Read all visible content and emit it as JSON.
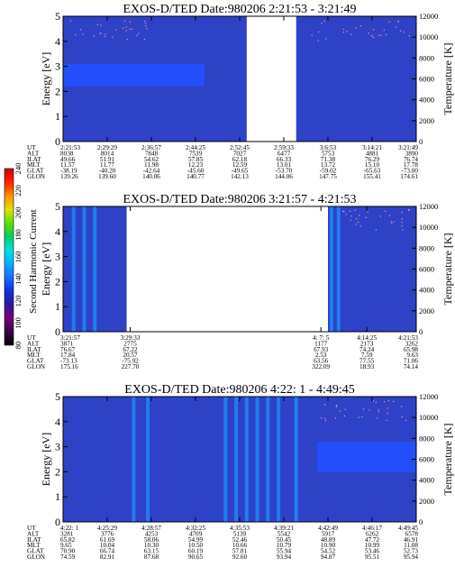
{
  "colors": {
    "background": "#2e42c8",
    "band": "#2250ff",
    "stripe_bright": "#1e90ff",
    "gap": "#ffffff",
    "dots": "#ff9a9a"
  },
  "colorbar": {
    "label": "Second Harmonic Current",
    "ticks": [
      "80",
      "100",
      "120",
      "140",
      "160",
      "180",
      "200",
      "220",
      "240"
    ],
    "stops": [
      "#000000",
      "#3a004a",
      "#7a007a",
      "#2a1aa0",
      "#1030e0",
      "#1e6cff",
      "#00b4ff",
      "#00e0e0",
      "#00d060",
      "#60e000",
      "#e0e000",
      "#ff9000",
      "#ff2000",
      "#d00000"
    ]
  },
  "chart_data": [
    {
      "type": "heatmap",
      "title": "EXOS-D/TED   Date:980206  2:21:53 - 3:21:49",
      "ylabel": "Energy [eV]",
      "y2label": "Temperature [K]",
      "ylim": [
        0,
        5
      ],
      "y2lim": [
        0,
        12000
      ],
      "yticks": [
        "0",
        "1",
        "2",
        "3",
        "4",
        "5"
      ],
      "y2ticks": [
        "0",
        "2000",
        "4000",
        "6000",
        "8000",
        "10000",
        "12000"
      ],
      "no_data_ranges": [
        [
          0.0,
          0.0
        ],
        [
          0.52,
          0.66
        ]
      ],
      "dot_time_ranges": [
        [
          0.02,
          0.25
        ],
        [
          0.7,
          0.98
        ]
      ],
      "band": {
        "y_low": 2.2,
        "y_high": 3.1,
        "t_end": 0.4
      },
      "stripes": [],
      "row_labels": [
        "UT",
        "ALT",
        "ILAT",
        "MLT",
        "GLAT",
        "GLON"
      ],
      "columns": [
        [
          "2:21:53",
          "8038",
          "49.66",
          "11.57",
          "-38.19",
          "139.26"
        ],
        [
          "2:29:29",
          "8014",
          "51.91",
          "11.77",
          "-40.20",
          "139.60"
        ],
        [
          "2:36:57",
          "7848",
          "54.62",
          "11.98",
          "-42.64",
          "140.06"
        ],
        [
          "2:44:25",
          "7539",
          "57.85",
          "12.23",
          "-45.60",
          "140.77"
        ],
        [
          "2:52:45",
          "7027",
          "62.18",
          "12.59",
          "-49.65",
          "142.13"
        ],
        [
          "2:59:33",
          "6477",
          "66.33",
          "13.01",
          "-53.70",
          "144.06"
        ],
        [
          "3:6:53",
          "5753",
          "71.38",
          "13.72",
          "-59.02",
          "147.75"
        ],
        [
          "3:14:21",
          "4881",
          "76.29",
          "15.10",
          "-65.63",
          "155.41"
        ],
        [
          "3:21:49",
          "3890",
          "76.74",
          "17.78",
          "-73.00",
          "174.61"
        ]
      ]
    },
    {
      "type": "heatmap",
      "title": "EXOS-D/TED   Date:980206  3:21:57 - 4:21:53",
      "ylabel": "Energy [eV]",
      "y2label": "Temperature [K]",
      "ylim": [
        0,
        5
      ],
      "y2lim": [
        0,
        12000
      ],
      "yticks": [
        "0",
        "1",
        "2",
        "3",
        "4",
        "5"
      ],
      "y2ticks": [
        "0",
        "2000",
        "4000",
        "6000",
        "8000",
        "10000",
        "12000"
      ],
      "no_data_ranges": [
        [
          0.18,
          0.75
        ]
      ],
      "dot_time_ranges": [
        [
          0.79,
          0.98
        ]
      ],
      "band": null,
      "stripes": [
        0.03,
        0.06,
        0.09,
        0.76,
        0.78
      ],
      "row_labels": [
        "UT",
        "ALT",
        "ILAT",
        "MLT",
        "GLAT",
        "GLON"
      ],
      "columns": [
        [
          "3:21:57",
          "3871",
          "76.67",
          "17.84",
          "-73.13",
          "175.16"
        ],
        [
          "3:29:33",
          "2775",
          "67.22",
          "20.57",
          "-75.92",
          "227.70"
        ],
        [
          "4: 7: 5",
          "1177",
          "67.93",
          "2.53",
          "63.56",
          "322.09"
        ],
        [
          "4:14:25",
          "2173",
          "74.24",
          "7.59",
          "77.55",
          "18.93"
        ],
        [
          "4:21:53",
          "3262",
          "65.98",
          "9.63",
          "71.06",
          "74.14"
        ]
      ]
    },
    {
      "type": "heatmap",
      "title": "EXOS-D/TED   Date:980206  4:22: 1 - 4:49:45",
      "ylabel": "Energy [eV]",
      "y2label": "Temperature [K]",
      "ylim": [
        0,
        5
      ],
      "y2lim": [
        0,
        12000
      ],
      "yticks": [
        "0",
        "1",
        "2",
        "3",
        "4",
        "5"
      ],
      "y2ticks": [
        "0",
        "2000",
        "4000",
        "6000",
        "8000",
        "10000",
        "12000"
      ],
      "no_data_ranges": [],
      "dot_time_ranges": [
        [
          0.72,
          0.98
        ]
      ],
      "band": {
        "y_low": 2.0,
        "y_high": 3.2,
        "t_start": 0.72,
        "t_end": 1.0
      },
      "stripes": [
        0.2,
        0.24,
        0.46,
        0.49,
        0.52,
        0.55,
        0.58,
        0.61,
        0.66
      ],
      "row_labels": [
        "UT",
        "ALT",
        "ILAT",
        "MLT",
        "GLAT",
        "GLON"
      ],
      "columns": [
        [
          "4:22: 1",
          "3281",
          "65.82",
          "9.65",
          "70.90",
          "74.59"
        ],
        [
          "4:25:29",
          "3776",
          "61.69",
          "10.04",
          "66.74",
          "82.91"
        ],
        [
          "4:28:57",
          "4253",
          "58.06",
          "10.30",
          "63.15",
          "87.68"
        ],
        [
          "4:32:25",
          "4709",
          "54.99",
          "10.50",
          "60.19",
          "90.65"
        ],
        [
          "4:35:53",
          "5139",
          "52.46",
          "10.66",
          "57.81",
          "92.60"
        ],
        [
          "4:39:21",
          "5542",
          "50.45",
          "10.79",
          "55.94",
          "93.94"
        ],
        [
          "4:42:49",
          "5917",
          "48.89",
          "10.90",
          "54.52",
          "94.87"
        ],
        [
          "4:46:17",
          "6262",
          "47.72",
          "10.99",
          "53.46",
          "95.51"
        ],
        [
          "4:49:45",
          "6578",
          "46.91",
          "11.08",
          "52.73",
          "95.94"
        ]
      ]
    }
  ]
}
